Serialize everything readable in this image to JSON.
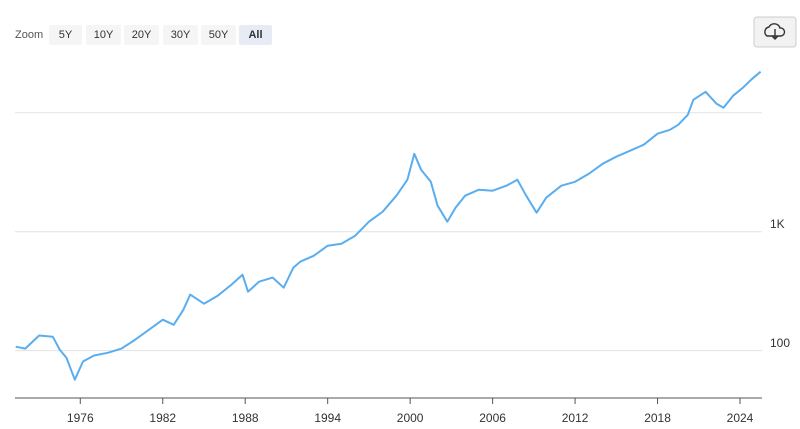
{
  "zoom": {
    "label": "Zoom",
    "options": [
      "5Y",
      "10Y",
      "20Y",
      "30Y",
      "50Y",
      "All"
    ],
    "selected_index": 5
  },
  "chart_data": {
    "type": "line",
    "log_y": true,
    "grid": true,
    "xlim": [
      1971.25,
      2025.6
    ],
    "xticks": [
      1976,
      1982,
      1988,
      1994,
      2000,
      2006,
      2012,
      2018,
      2024
    ],
    "ylim": [
      40,
      30000
    ],
    "yticks": [
      100,
      {
        "value": 1000,
        "label": "1K"
      },
      {
        "value": 10000,
        "label": null
      }
    ],
    "series": [
      {
        "color": "#5aaeef",
        "x": [
          1971.3,
          1972,
          1973,
          1974,
          1974.5,
          1975,
          1975.6,
          1976.2,
          1977,
          1978,
          1979,
          1980,
          1981,
          1982,
          1982.8,
          1983.5,
          1984,
          1985,
          1986,
          1987,
          1987.8,
          1988.2,
          1989,
          1990,
          1990.8,
          1991.5,
          1992,
          1993,
          1994,
          1995,
          1996,
          1997,
          1998,
          1999,
          1999.8,
          2000.3,
          2000.8,
          2001.5,
          2002,
          2002.7,
          2003.3,
          2004,
          2005,
          2006,
          2007,
          2007.8,
          2008.4,
          2009.2,
          2009.9,
          2011,
          2012,
          2013,
          2014,
          2015,
          2016,
          2017,
          2018,
          2018.9,
          2019.5,
          2020.2,
          2020.6,
          2021.5,
          2022.3,
          2022.8,
          2023.5,
          2024.2,
          2024.8,
          2025.5
        ],
        "values": [
          108,
          104,
          134,
          131,
          102,
          87,
          57,
          81,
          91,
          96,
          104,
          124,
          150,
          182,
          165,
          221,
          296,
          248,
          290,
          359,
          435,
          313,
          380,
          411,
          338,
          498,
          560,
          628,
          763,
          793,
          925,
          1213,
          1472,
          2008,
          2735,
          4520,
          3320,
          2630,
          1654,
          1213,
          1592,
          2008,
          2254,
          2212,
          2436,
          2735,
          2046,
          1445,
          1930,
          2436,
          2630,
          3070,
          3726,
          4268,
          4797,
          5385,
          6663,
          7194,
          7925,
          9620,
          12850,
          15000,
          11900,
          11020,
          13900,
          16220,
          18930,
          22120
        ]
      }
    ]
  }
}
